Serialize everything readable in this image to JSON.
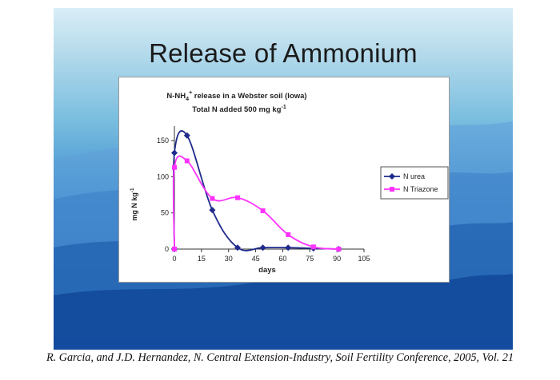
{
  "slide": {
    "title": "Release of Ammonium"
  },
  "chart_data": {
    "type": "line",
    "title_line1_main": "N-NH",
    "title_line1_sub": "4",
    "title_line1_sup": "+",
    "title_line1_rest": " release in a Webster soil (Iowa)",
    "title_line2": "Total N added 500 mg kg",
    "title_line2_sup": "-1",
    "xlabel": "days",
    "ylabel": "mg N kg",
    "ylabel_sup": "-1",
    "xlim": [
      0,
      105
    ],
    "ylim": [
      0,
      170
    ],
    "xticks": [
      "0",
      "15",
      "30",
      "45",
      "60",
      "75",
      "90",
      "105"
    ],
    "yticks": [
      "0",
      "50",
      "100",
      "150"
    ],
    "legend_position": "right",
    "series": [
      {
        "name": "N urea",
        "color": "#1f2a8c",
        "marker": "diamond",
        "x": [
          0,
          0,
          7,
          21,
          35,
          49,
          63,
          77,
          91
        ],
        "y": [
          0,
          133,
          157,
          54,
          2,
          2,
          2,
          1,
          0
        ]
      },
      {
        "name": "N Triazone",
        "color": "#ff33ff",
        "marker": "square",
        "x": [
          0,
          0,
          7,
          21,
          35,
          49,
          63,
          77,
          91
        ],
        "y": [
          0,
          113,
          122,
          70,
          71,
          53,
          20,
          3,
          0
        ]
      }
    ]
  },
  "citation": "R. Garcia, and J.D. Hernandez, N. Central Extension-Industry, Soil Fertility Conference, 2005, Vol. 21"
}
